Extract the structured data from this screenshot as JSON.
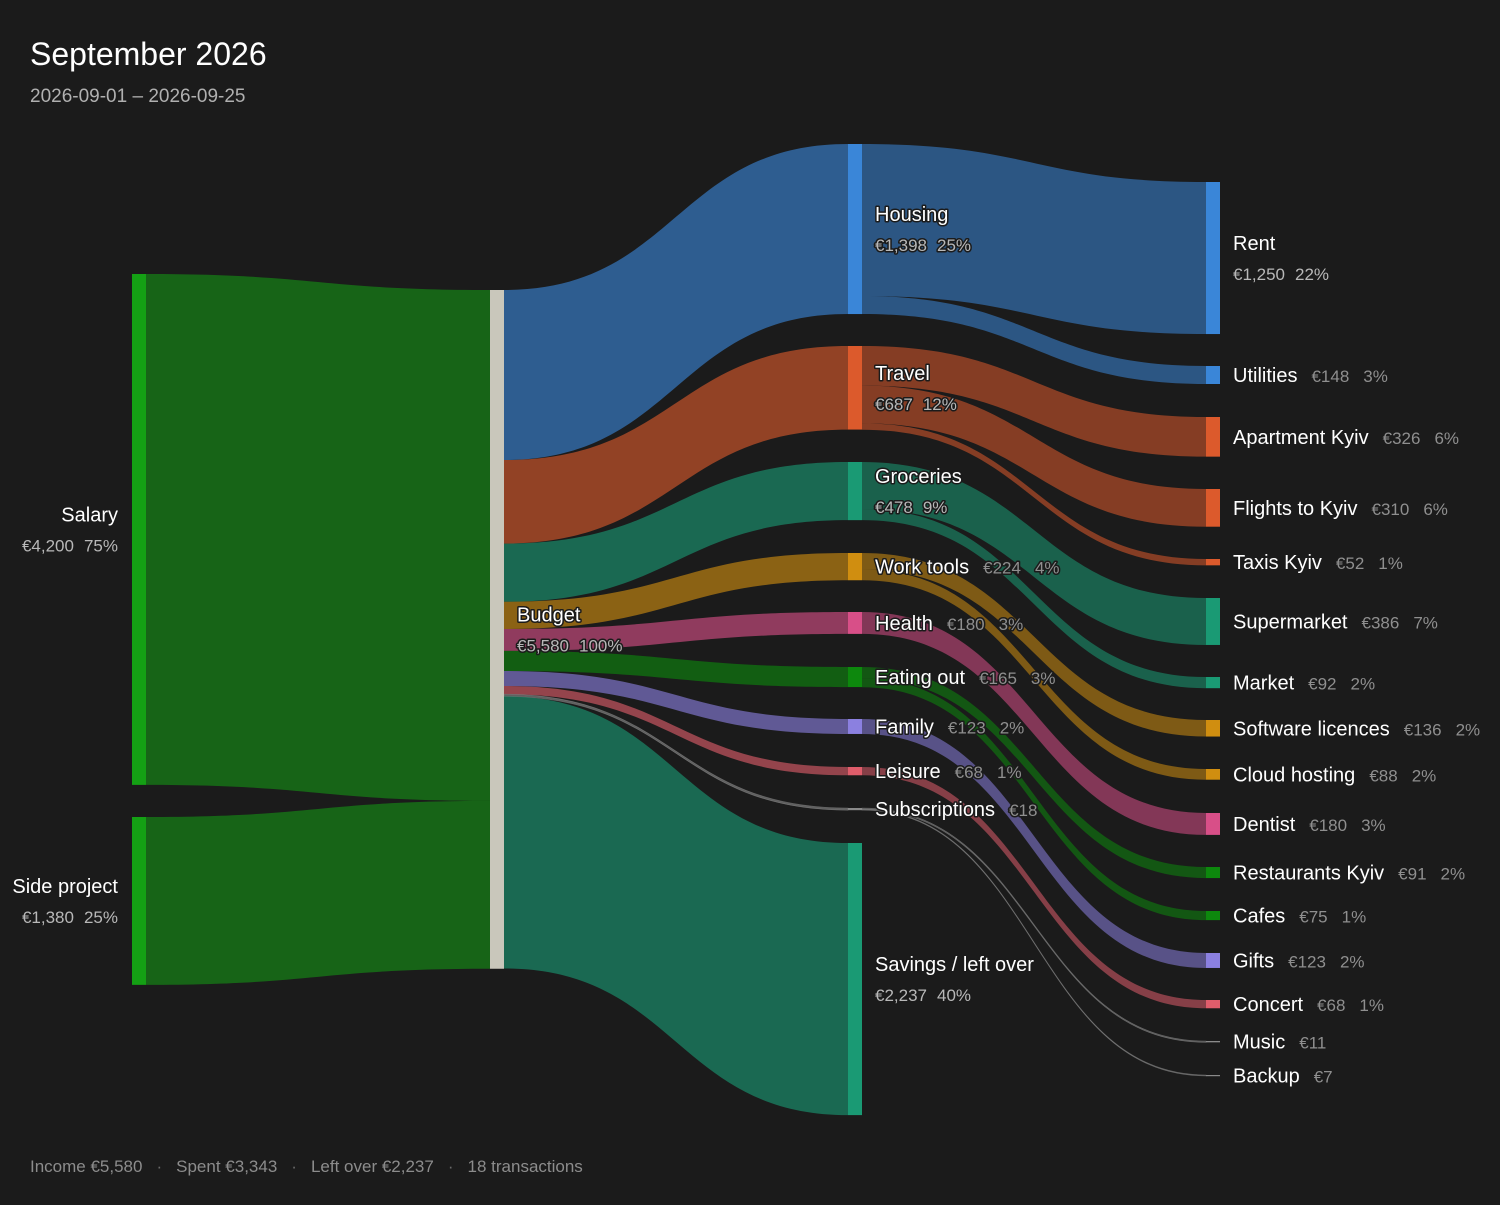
{
  "header": {
    "title": "September 2026",
    "date_range": "2026-09-01 – 2026-09-25"
  },
  "footer": {
    "income": "Income €5,580",
    "spent": "Spent €3,343",
    "left_over": "Left over €2,237",
    "transactions": "18 transactions",
    "separator": "·"
  },
  "colors": {
    "background": "#1b1b1b",
    "income": "#14a014",
    "budget": "#c9c7bb",
    "housing": "#3a86d8",
    "travel": "#dc5a2c",
    "groceries": "#1a9a74",
    "work_tools": "#d08e10",
    "health": "#d84f88",
    "eating_out": "#0d880d",
    "family": "#8b80e0",
    "leisure": "#df5d6b",
    "subscriptions": "#8a8a8a",
    "savings": "#1a9a74"
  },
  "chart_data": {
    "type": "sankey",
    "title": "September 2026",
    "subtitle": "2026-09-01 – 2026-09-25",
    "currency": "€",
    "nodes": [
      {
        "id": "salary",
        "label": "Salary",
        "value_label": "€4,200",
        "pct_label": "75%",
        "value": 4200,
        "column": 0,
        "color": "#14a014"
      },
      {
        "id": "side_project",
        "label": "Side project",
        "value_label": "€1,380",
        "pct_label": "25%",
        "value": 1380,
        "column": 0,
        "color": "#14a014"
      },
      {
        "id": "budget",
        "label": "Budget",
        "value_label": "€5,580",
        "pct_label": "100%",
        "value": 5580,
        "column": 1,
        "color": "#c9c7bb"
      },
      {
        "id": "housing",
        "label": "Housing",
        "value_label": "€1,398",
        "pct_label": "25%",
        "value": 1398,
        "column": 2,
        "color": "#3a86d8"
      },
      {
        "id": "travel",
        "label": "Travel",
        "value_label": "€687",
        "pct_label": "12%",
        "value": 687,
        "column": 2,
        "color": "#dc5a2c"
      },
      {
        "id": "groceries",
        "label": "Groceries",
        "value_label": "€478",
        "pct_label": "9%",
        "value": 478,
        "column": 2,
        "color": "#1a9a74"
      },
      {
        "id": "work_tools",
        "label": "Work tools",
        "value_label": "€224",
        "pct_label": "4%",
        "value": 224,
        "column": 2,
        "color": "#d08e10"
      },
      {
        "id": "health",
        "label": "Health",
        "value_label": "€180",
        "pct_label": "3%",
        "value": 180,
        "column": 2,
        "color": "#d84f88"
      },
      {
        "id": "eating_out",
        "label": "Eating out",
        "value_label": "€165",
        "pct_label": "3%",
        "value": 165,
        "column": 2,
        "color": "#0d880d"
      },
      {
        "id": "family",
        "label": "Family",
        "value_label": "€123",
        "pct_label": "2%",
        "value": 123,
        "column": 2,
        "color": "#8b80e0"
      },
      {
        "id": "leisure",
        "label": "Leisure",
        "value_label": "€68",
        "pct_label": "1%",
        "value": 68,
        "column": 2,
        "color": "#df5d6b"
      },
      {
        "id": "subscriptions",
        "label": "Subscriptions",
        "value_label": "€18",
        "pct_label": "",
        "value": 18,
        "column": 2,
        "color": "#8a8a8a"
      },
      {
        "id": "savings",
        "label": "Savings / left over",
        "value_label": "€2,237",
        "pct_label": "40%",
        "value": 2237,
        "column": 2,
        "color": "#1a9a74"
      },
      {
        "id": "rent",
        "label": "Rent",
        "value_label": "€1,250",
        "pct_label": "22%",
        "value": 1250,
        "column": 3,
        "color": "#3a86d8"
      },
      {
        "id": "utilities",
        "label": "Utilities",
        "value_label": "€148",
        "pct_label": "3%",
        "value": 148,
        "column": 3,
        "color": "#3a86d8"
      },
      {
        "id": "apartment_kyiv",
        "label": "Apartment Kyiv",
        "value_label": "€326",
        "pct_label": "6%",
        "value": 326,
        "column": 3,
        "color": "#dc5a2c"
      },
      {
        "id": "flights_kyiv",
        "label": "Flights to Kyiv",
        "value_label": "€310",
        "pct_label": "6%",
        "value": 310,
        "column": 3,
        "color": "#dc5a2c"
      },
      {
        "id": "taxis_kyiv",
        "label": "Taxis Kyiv",
        "value_label": "€52",
        "pct_label": "1%",
        "value": 52,
        "column": 3,
        "color": "#dc5a2c"
      },
      {
        "id": "supermarket",
        "label": "Supermarket",
        "value_label": "€386",
        "pct_label": "7%",
        "value": 386,
        "column": 3,
        "color": "#1a9a74"
      },
      {
        "id": "market",
        "label": "Market",
        "value_label": "€92",
        "pct_label": "2%",
        "value": 92,
        "column": 3,
        "color": "#1a9a74"
      },
      {
        "id": "software_licences",
        "label": "Software licences",
        "value_label": "€136",
        "pct_label": "2%",
        "value": 136,
        "column": 3,
        "color": "#d08e10"
      },
      {
        "id": "cloud_hosting",
        "label": "Cloud hosting",
        "value_label": "€88",
        "pct_label": "2%",
        "value": 88,
        "column": 3,
        "color": "#d08e10"
      },
      {
        "id": "dentist",
        "label": "Dentist",
        "value_label": "€180",
        "pct_label": "3%",
        "value": 180,
        "column": 3,
        "color": "#d84f88"
      },
      {
        "id": "restaurants_kyiv",
        "label": "Restaurants Kyiv",
        "value_label": "€91",
        "pct_label": "2%",
        "value": 91,
        "column": 3,
        "color": "#0d880d"
      },
      {
        "id": "cafes",
        "label": "Cafes",
        "value_label": "€75",
        "pct_label": "1%",
        "value": 75,
        "column": 3,
        "color": "#0d880d"
      },
      {
        "id": "gifts",
        "label": "Gifts",
        "value_label": "€123",
        "pct_label": "2%",
        "value": 123,
        "column": 3,
        "color": "#8b80e0"
      },
      {
        "id": "concert",
        "label": "Concert",
        "value_label": "€68",
        "pct_label": "1%",
        "value": 68,
        "column": 3,
        "color": "#df5d6b"
      },
      {
        "id": "music",
        "label": "Music",
        "value_label": "€11",
        "pct_label": "",
        "value": 11,
        "column": 3,
        "color": "#8a8a8a"
      },
      {
        "id": "backup",
        "label": "Backup",
        "value_label": "€7",
        "pct_label": "",
        "value": 7,
        "column": 3,
        "color": "#8a8a8a"
      }
    ],
    "links": [
      {
        "source": "salary",
        "target": "budget",
        "value": 4200
      },
      {
        "source": "side_project",
        "target": "budget",
        "value": 1380
      },
      {
        "source": "budget",
        "target": "housing",
        "value": 1398
      },
      {
        "source": "budget",
        "target": "travel",
        "value": 687
      },
      {
        "source": "budget",
        "target": "groceries",
        "value": 478
      },
      {
        "source": "budget",
        "target": "work_tools",
        "value": 224
      },
      {
        "source": "budget",
        "target": "health",
        "value": 180
      },
      {
        "source": "budget",
        "target": "eating_out",
        "value": 165
      },
      {
        "source": "budget",
        "target": "family",
        "value": 123
      },
      {
        "source": "budget",
        "target": "leisure",
        "value": 68
      },
      {
        "source": "budget",
        "target": "subscriptions",
        "value": 18
      },
      {
        "source": "budget",
        "target": "savings",
        "value": 2237
      },
      {
        "source": "housing",
        "target": "rent",
        "value": 1250
      },
      {
        "source": "housing",
        "target": "utilities",
        "value": 148
      },
      {
        "source": "travel",
        "target": "apartment_kyiv",
        "value": 326
      },
      {
        "source": "travel",
        "target": "flights_kyiv",
        "value": 310
      },
      {
        "source": "travel",
        "target": "taxis_kyiv",
        "value": 52
      },
      {
        "source": "groceries",
        "target": "supermarket",
        "value": 386
      },
      {
        "source": "groceries",
        "target": "market",
        "value": 92
      },
      {
        "source": "work_tools",
        "target": "software_licences",
        "value": 136
      },
      {
        "source": "work_tools",
        "target": "cloud_hosting",
        "value": 88
      },
      {
        "source": "health",
        "target": "dentist",
        "value": 180
      },
      {
        "source": "eating_out",
        "target": "restaurants_kyiv",
        "value": 91
      },
      {
        "source": "eating_out",
        "target": "cafes",
        "value": 75
      },
      {
        "source": "family",
        "target": "gifts",
        "value": 123
      },
      {
        "source": "leisure",
        "target": "concert",
        "value": 68
      },
      {
        "source": "subscriptions",
        "target": "music",
        "value": 11
      },
      {
        "source": "subscriptions",
        "target": "backup",
        "value": 7
      }
    ]
  }
}
